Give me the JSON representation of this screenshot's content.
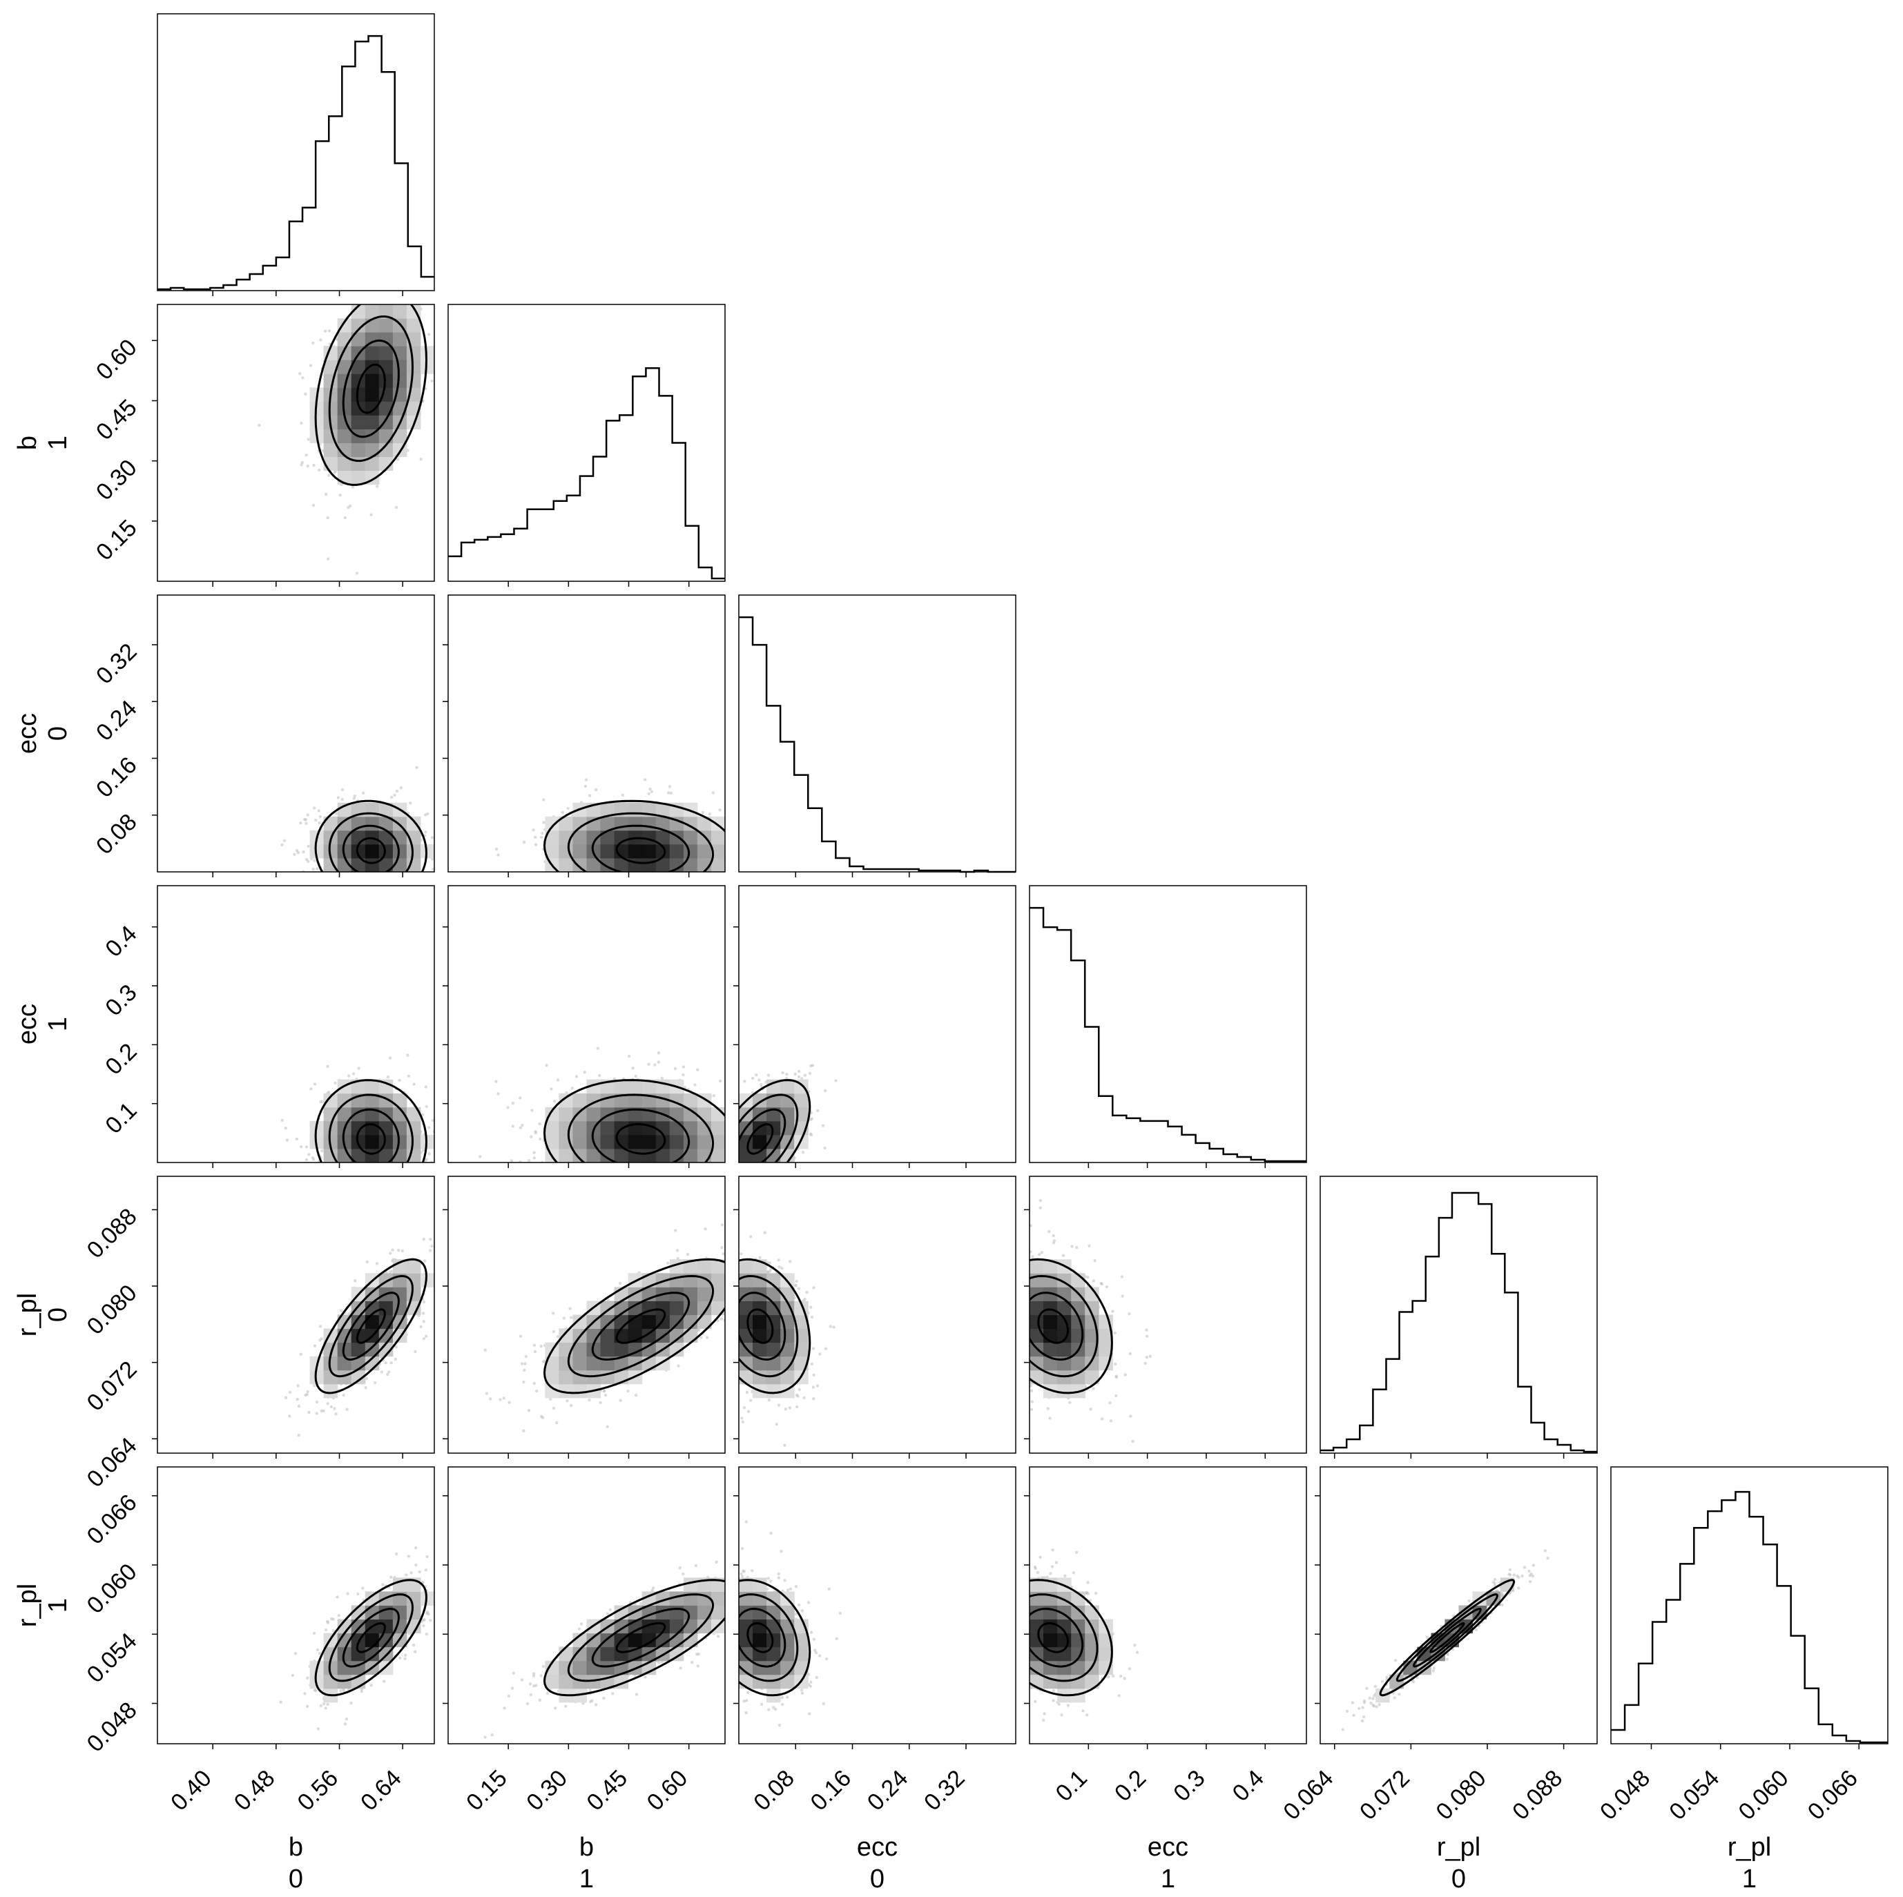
{
  "chart_data": {
    "type": "corner",
    "variables": [
      {
        "label": "b",
        "index": "0",
        "range": [
          0.33,
          0.68
        ],
        "ticks": [
          "0.40",
          "0.48",
          "0.56",
          "0.64"
        ]
      },
      {
        "label": "b",
        "index": "1",
        "range": [
          0.0,
          0.69
        ],
        "ticks": [
          "0.15",
          "0.30",
          "0.45",
          "0.60"
        ]
      },
      {
        "label": "ecc",
        "index": "0",
        "range": [
          0.0,
          0.39
        ],
        "ticks": [
          "0.08",
          "0.16",
          "0.24",
          "0.32"
        ]
      },
      {
        "label": "ecc",
        "index": "1",
        "range": [
          0.0,
          0.47
        ],
        "ticks": [
          "0.1",
          "0.2",
          "0.3",
          "0.4"
        ]
      },
      {
        "label": "r_pl",
        "index": "0",
        "range": [
          0.0625,
          0.0915
        ],
        "ticks": [
          "0.064",
          "0.072",
          "0.080",
          "0.088"
        ]
      },
      {
        "label": "r_pl",
        "index": "1",
        "range": [
          0.0445,
          0.0685
        ],
        "ticks": [
          "0.048",
          "0.054",
          "0.060",
          "0.066"
        ]
      }
    ],
    "histograms": [
      [
        0.005,
        0.01,
        0.005,
        0.005,
        0.01,
        0.02,
        0.04,
        0.06,
        0.09,
        0.12,
        0.25,
        0.3,
        0.54,
        0.63,
        0.81,
        0.9,
        0.92,
        0.79,
        0.46,
        0.16,
        0.05
      ],
      [
        0.09,
        0.14,
        0.15,
        0.16,
        0.17,
        0.19,
        0.26,
        0.26,
        0.29,
        0.31,
        0.38,
        0.45,
        0.58,
        0.6,
        0.74,
        0.77,
        0.67,
        0.5,
        0.2,
        0.05,
        0.01
      ],
      [
        0.92,
        0.82,
        0.6,
        0.47,
        0.35,
        0.23,
        0.11,
        0.05,
        0.02,
        0.01,
        0.01,
        0.01,
        0.01,
        0.005,
        0.005,
        0.005,
        0.0,
        0.005,
        0.0,
        0.0
      ],
      [
        0.92,
        0.85,
        0.84,
        0.73,
        0.49,
        0.24,
        0.17,
        0.16,
        0.15,
        0.15,
        0.13,
        0.1,
        0.07,
        0.05,
        0.03,
        0.02,
        0.01,
        0.005,
        0.005,
        0.005
      ],
      [
        0.01,
        0.02,
        0.05,
        0.1,
        0.23,
        0.34,
        0.51,
        0.55,
        0.71,
        0.85,
        0.94,
        0.94,
        0.9,
        0.72,
        0.58,
        0.24,
        0.11,
        0.05,
        0.03,
        0.01,
        0.005
      ],
      [
        0.05,
        0.14,
        0.29,
        0.44,
        0.52,
        0.65,
        0.78,
        0.84,
        0.88,
        0.91,
        0.82,
        0.72,
        0.57,
        0.39,
        0.2,
        0.07,
        0.03,
        0.01,
        0.005,
        0.005
      ]
    ],
    "correlations": [
      [
        1.0,
        0.3,
        -0.05,
        -0.05,
        0.75,
        0.7
      ],
      [
        0.3,
        1.0,
        -0.1,
        -0.1,
        0.7,
        0.75
      ],
      [
        -0.05,
        -0.1,
        1.0,
        0.55,
        -0.25,
        -0.25
      ],
      [
        -0.05,
        -0.1,
        0.55,
        1.0,
        -0.25,
        -0.25
      ],
      [
        0.75,
        0.7,
        -0.25,
        -0.25,
        1.0,
        0.97
      ],
      [
        0.7,
        0.75,
        -0.25,
        -0.25,
        0.97,
        1.0
      ]
    ],
    "means": [
      0.6,
      0.48,
      0.03,
      0.04,
      0.0758,
      0.0537
    ],
    "sds": [
      0.035,
      0.12,
      0.035,
      0.05,
      0.0035,
      0.0025
    ],
    "points_per_panel": 650,
    "contour_color": "#000000",
    "histogram_color": "#000000",
    "density_color": "#000000",
    "grid": false
  }
}
